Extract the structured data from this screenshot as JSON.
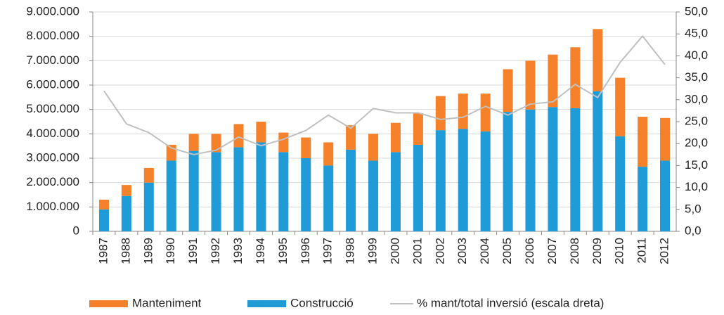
{
  "chart_data": {
    "type": "bar",
    "categories": [
      "1987",
      "1988",
      "1989",
      "1990",
      "1991",
      "1992",
      "1993",
      "1994",
      "1995",
      "1996",
      "1997",
      "1998",
      "1999",
      "2000",
      "2001",
      "2002",
      "2003",
      "2004",
      "2005",
      "2006",
      "2007",
      "2008",
      "2009",
      "2010",
      "2011",
      "2012"
    ],
    "series": [
      {
        "name": "Manteniment",
        "color": "#f5822a",
        "type": "bar",
        "values": [
          400000,
          450000,
          600000,
          650000,
          700000,
          750000,
          950000,
          850000,
          800000,
          850000,
          950000,
          1000000,
          1100000,
          1200000,
          1300000,
          1400000,
          1450000,
          1550000,
          1750000,
          2000000,
          2150000,
          2500000,
          2550000,
          2400000,
          2050000,
          1750000
        ]
      },
      {
        "name": "Construcció",
        "color": "#1f9bd7",
        "type": "bar",
        "values": [
          900000,
          1450000,
          2000000,
          2900000,
          3300000,
          3250000,
          3450000,
          3650000,
          3250000,
          3000000,
          2700000,
          3350000,
          2900000,
          3250000,
          3550000,
          4150000,
          4200000,
          4100000,
          4900000,
          5000000,
          5100000,
          5050000,
          5750000,
          3900000,
          2650000,
          2900000
        ]
      },
      {
        "name": "% mant/total inversió (escala dreta)",
        "color": "#c0c0c0",
        "type": "line",
        "axis": "y2",
        "values": [
          32,
          24.5,
          22.5,
          19,
          17.5,
          18.5,
          21.5,
          19.5,
          21,
          23,
          26.5,
          23.5,
          28,
          27,
          27,
          25.5,
          26,
          28.5,
          26.5,
          29,
          29.5,
          33.5,
          30.5,
          38.5,
          44.5,
          38
        ]
      }
    ],
    "ylim": [
      0,
      9000000
    ],
    "yticks": [
      {
        "value": 0,
        "label": "0"
      },
      {
        "value": 1000000,
        "label": "1.000.000"
      },
      {
        "value": 2000000,
        "label": "2.000.000"
      },
      {
        "value": 3000000,
        "label": "3.000.000"
      },
      {
        "value": 4000000,
        "label": "4.000.000"
      },
      {
        "value": 5000000,
        "label": "5.000.000"
      },
      {
        "value": 6000000,
        "label": "6.000.000"
      },
      {
        "value": 7000000,
        "label": "7.000.000"
      },
      {
        "value": 8000000,
        "label": "8.000.000"
      },
      {
        "value": 9000000,
        "label": "9.000.000"
      }
    ],
    "y2lim": [
      0,
      50
    ],
    "y2ticks": [
      {
        "value": 0,
        "label": "0,0"
      },
      {
        "value": 5,
        "label": "5,0"
      },
      {
        "value": 10,
        "label": "10,0"
      },
      {
        "value": 15,
        "label": "15,0"
      },
      {
        "value": 20,
        "label": "20,0"
      },
      {
        "value": 25,
        "label": "25,0"
      },
      {
        "value": 30,
        "label": "30,0"
      },
      {
        "value": 35,
        "label": "35,0"
      },
      {
        "value": 40,
        "label": "40,0"
      },
      {
        "value": 45,
        "label": "45,0"
      },
      {
        "value": 50,
        "label": "50,0"
      }
    ],
    "grid": true,
    "legend": "bottom"
  }
}
